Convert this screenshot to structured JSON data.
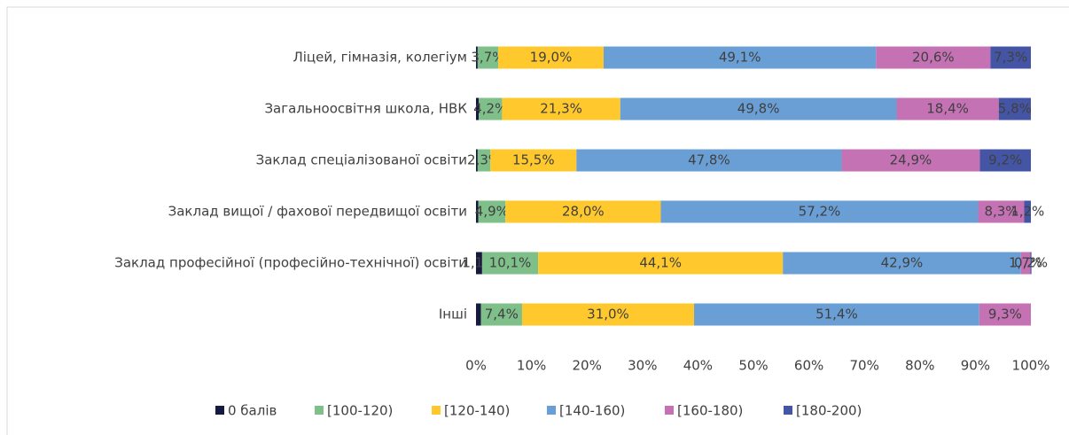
{
  "chart_data": {
    "type": "stacked-bar-horizontal",
    "categories": [
      "Ліцей,  гімназія, колегіум",
      "Загальноосвітня школа, НВК",
      "Заклад спеціалізованої освіти",
      "Заклад вищої / фахової передвищої освіти",
      "Заклад професійної (професійно-технічної) освіти",
      "Інші"
    ],
    "series": [
      {
        "name": "0 балів",
        "color": "#161a3f",
        "values": [
          0.3,
          0.5,
          0.3,
          0.4,
          1.1,
          0.9
        ],
        "value_labels": [
          null,
          null,
          null,
          null,
          "1,1%",
          null
        ]
      },
      {
        "name": "[100-120)",
        "color": "#7fbf8a",
        "values": [
          3.7,
          4.2,
          2.3,
          4.9,
          10.1,
          7.4
        ],
        "value_labels": [
          "3,7%",
          "4,2%",
          "2,3%",
          "4,9%",
          "10,1%",
          "7,4%"
        ]
      },
      {
        "name": "[120-140)",
        "color": "#ffc92e",
        "values": [
          19.0,
          21.3,
          15.5,
          28.0,
          44.1,
          31.0
        ],
        "value_labels": [
          "19,0%",
          "21,3%",
          "15,5%",
          "28,0%",
          "44,1%",
          "31,0%"
        ]
      },
      {
        "name": "[140-160)",
        "color": "#6a9fd6",
        "values": [
          49.1,
          49.8,
          47.8,
          57.2,
          42.9,
          51.4
        ],
        "value_labels": [
          "49,1%",
          "49,8%",
          "47,8%",
          "57,2%",
          "42,9%",
          "51,4%"
        ]
      },
      {
        "name": "[160-180)",
        "color": "#c472b4",
        "values": [
          20.6,
          18.4,
          24.9,
          8.3,
          1.7,
          9.3
        ],
        "value_labels": [
          "20,6%",
          "18,4%",
          "24,9%",
          "8,3%",
          "1,7%",
          "9,3%"
        ]
      },
      {
        "name": "[180-200)",
        "color": "#4455a5",
        "values": [
          7.3,
          5.8,
          9.2,
          1.2,
          0.2,
          0
        ],
        "value_labels": [
          "7,3%",
          "5,8%",
          "9,2%",
          "1,2%",
          "0,2%",
          null
        ]
      }
    ],
    "xlim": [
      0,
      100
    ],
    "xticks": [
      {
        "value": 0,
        "label": "0%"
      },
      {
        "value": 10,
        "label": "10%"
      },
      {
        "value": 20,
        "label": "20%"
      },
      {
        "value": 30,
        "label": "30%"
      },
      {
        "value": 40,
        "label": "40%"
      },
      {
        "value": 50,
        "label": "50%"
      },
      {
        "value": 60,
        "label": "60%"
      },
      {
        "value": 70,
        "label": "70%"
      },
      {
        "value": 80,
        "label": "80%"
      },
      {
        "value": 90,
        "label": "90%"
      },
      {
        "value": 100,
        "label": "100%"
      }
    ],
    "legend": "bottom"
  }
}
